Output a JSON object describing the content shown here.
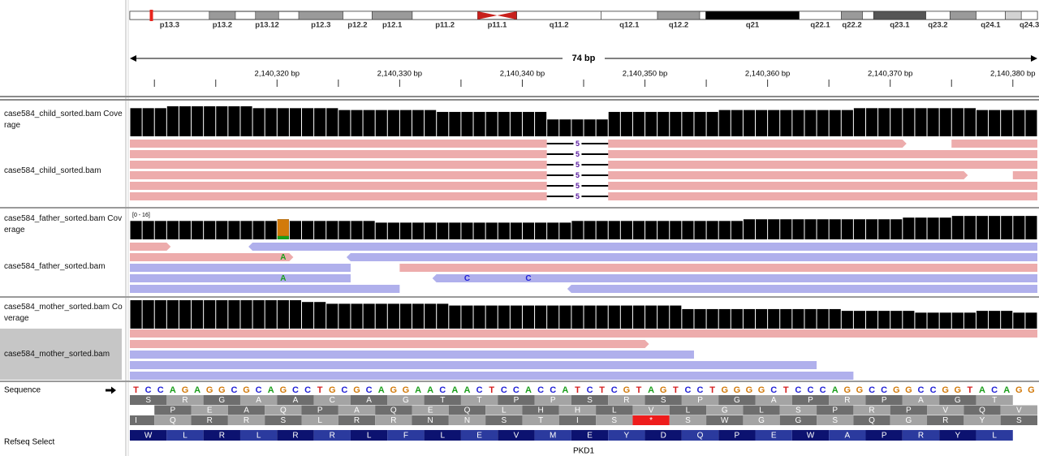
{
  "ideogram": {
    "length": 90.3,
    "marker": 2.14,
    "marker_color": "#e8261e",
    "stain_colors": {
      "gneg": "#ffffff",
      "gpos25": "#d2d2d2",
      "gpos50": "#9a9a9a",
      "gpos75": "#555555",
      "gpos100": "#000000",
      "acen": "#c8201c"
    },
    "bands": [
      {
        "label": "p13.3",
        "start": 0,
        "end": 7.9,
        "stain": "gneg"
      },
      {
        "label": "p13.2",
        "start": 7.9,
        "end": 10.5,
        "stain": "gpos50"
      },
      {
        "label": "p13.12",
        "start": 12.5,
        "end": 14.8,
        "stain": "gpos50"
      },
      {
        "label": "p12.3",
        "start": 16.8,
        "end": 21.2,
        "stain": "gpos50"
      },
      {
        "label": "p12.2",
        "start": 21.2,
        "end": 24.1,
        "stain": "gneg"
      },
      {
        "label": "p12.1",
        "start": 24.1,
        "end": 28.1,
        "stain": "gpos50"
      },
      {
        "label": "p11.2",
        "start": 28.1,
        "end": 34.6,
        "stain": "gneg"
      },
      {
        "label": "p11.1",
        "start": 34.6,
        "end": 38.5,
        "stain": "acen"
      },
      {
        "label": "q11.2",
        "start": 38.5,
        "end": 46.9,
        "stain": "gneg"
      },
      {
        "label": "q12.1",
        "start": 46.9,
        "end": 52.5,
        "stain": "gneg"
      },
      {
        "label": "q12.2",
        "start": 52.5,
        "end": 56.7,
        "stain": "gpos50"
      },
      {
        "label": "q21",
        "start": 57.3,
        "end": 66.6,
        "stain": "gpos100"
      },
      {
        "label": "q22.1",
        "start": 66.6,
        "end": 70.8,
        "stain": "gneg"
      },
      {
        "label": "q22.2",
        "start": 70.8,
        "end": 72.9,
        "stain": "gpos50"
      },
      {
        "label": "q23.1",
        "start": 74.0,
        "end": 79.2,
        "stain": "gpos75"
      },
      {
        "label": "q23.2",
        "start": 79.2,
        "end": 81.6,
        "stain": "gneg"
      },
      {
        "label": "q24.1",
        "start": 84.2,
        "end": 87.1,
        "stain": "gneg"
      },
      {
        "label": "q24.3",
        "start": 88.7,
        "end": 90.3,
        "stain": "gneg"
      }
    ],
    "unlabeled_bands": [
      {
        "start": 81.6,
        "end": 84.2,
        "stain": "gpos50"
      },
      {
        "start": 87.1,
        "end": 88.7,
        "stain": "gpos25"
      }
    ]
  },
  "ruler": {
    "span_label": "74 bp",
    "xlim": [
      2140308,
      2140382
    ],
    "ticks": [
      2140310,
      2140315,
      {
        "value": 2140320,
        "label": "2,140,320 bp"
      },
      2140325,
      {
        "value": 2140330,
        "label": "2,140,330 bp"
      },
      2140335,
      {
        "value": 2140340,
        "label": "2,140,340 bp"
      },
      2140345,
      {
        "value": 2140350,
        "label": "2,140,350 bp"
      },
      2140355,
      {
        "value": 2140360,
        "label": "2,140,360 bp"
      },
      2140365,
      {
        "value": 2140370,
        "label": "2,140,370 bp"
      },
      2140375,
      {
        "value": 2140380,
        "label": "2,140,380 bp"
      }
    ]
  },
  "base_colors": {
    "A": "#1a9e1a",
    "C": "#1f1fd6",
    "G": "#d27a0a",
    "T": "#d41c1c"
  },
  "read_colors": {
    "+": "#edacac",
    "-": "#b0b0ec"
  },
  "tracks": [
    {
      "name": "case584_child_sorted.bam Coverage",
      "kind": "coverage",
      "ylim": [
        0,
        16
      ],
      "values": [
        15,
        15,
        15,
        16,
        16,
        16,
        16,
        16,
        16,
        16,
        15,
        15,
        15,
        15,
        15,
        15,
        15,
        14,
        14,
        14,
        14,
        14,
        14,
        14,
        14,
        13,
        13,
        13,
        13,
        13,
        13,
        13,
        13,
        13,
        9,
        9,
        9,
        9,
        9,
        13,
        13,
        13,
        13,
        13,
        13,
        13,
        13,
        13,
        14,
        14,
        14,
        14,
        14,
        14,
        14,
        14,
        14,
        14,
        14,
        15,
        15,
        15,
        15,
        15,
        15,
        15,
        15,
        15,
        15,
        14,
        14,
        14,
        14,
        14
      ]
    },
    {
      "name": "case584_child_sorted.bam",
      "kind": "alignment",
      "reads": [
        {
          "row": 0,
          "start": 2140290,
          "end": 2140371,
          "strand": "+"
        },
        {
          "row": 0,
          "start": 2140375,
          "end": 2140400,
          "strand": "+"
        },
        {
          "row": 1,
          "start": 2140290,
          "end": 2140400,
          "strand": "+"
        },
        {
          "row": 2,
          "start": 2140290,
          "end": 2140400,
          "strand": "+"
        },
        {
          "row": 3,
          "start": 2140290,
          "end": 2140376,
          "strand": "+"
        },
        {
          "row": 3,
          "start": 2140380,
          "end": 2140400,
          "strand": "+"
        },
        {
          "row": 4,
          "start": 2140290,
          "end": 2140400,
          "strand": "+"
        },
        {
          "row": 5,
          "start": 2140290,
          "end": 2140400,
          "strand": "+"
        }
      ],
      "deletions": [
        {
          "row": 0,
          "start": 2140342,
          "end": 2140347,
          "label": "5"
        },
        {
          "row": 1,
          "start": 2140342,
          "end": 2140347,
          "label": "5"
        },
        {
          "row": 2,
          "start": 2140342,
          "end": 2140347,
          "label": "5"
        },
        {
          "row": 3,
          "start": 2140342,
          "end": 2140347,
          "label": "5"
        },
        {
          "row": 4,
          "start": 2140342,
          "end": 2140347,
          "label": "5"
        },
        {
          "row": 5,
          "start": 2140342,
          "end": 2140347,
          "label": "5"
        }
      ]
    },
    {
      "name": "case584_father_sorted.bam Coverage",
      "kind": "coverage",
      "range_label": "[0 - 16]",
      "ylim": [
        0,
        16
      ],
      "values": [
        11,
        11,
        11,
        11,
        11,
        11,
        11,
        11,
        11,
        11,
        11,
        11,
        12,
        11,
        11,
        11,
        11,
        11,
        11,
        11,
        10,
        10,
        10,
        10,
        10,
        10,
        10,
        10,
        10,
        10,
        10,
        10,
        10,
        10,
        10,
        10,
        11,
        11,
        11,
        11,
        11,
        11,
        11,
        11,
        11,
        11,
        11,
        11,
        11,
        11,
        12,
        12,
        12,
        12,
        12,
        12,
        12,
        12,
        12,
        12,
        12,
        12,
        12,
        13,
        13,
        13,
        13,
        14,
        14,
        14,
        14,
        14,
        14,
        14
      ],
      "allele_split": {
        "position": 2140320,
        "counts": {
          "A": 2,
          "G": 10
        }
      }
    },
    {
      "name": "case584_father_sorted.bam",
      "kind": "alignment",
      "reads": [
        {
          "row": 0,
          "start": 2140290,
          "end": 2140311,
          "strand": "+"
        },
        {
          "row": 0,
          "start": 2140318,
          "end": 2140400,
          "strand": "-"
        },
        {
          "row": 1,
          "start": 2140290,
          "end": 2140321,
          "strand": "+"
        },
        {
          "row": 1,
          "start": 2140326,
          "end": 2140400,
          "strand": "-"
        },
        {
          "row": 2,
          "start": 2140290,
          "end": 2140326,
          "strand": "-"
        },
        {
          "row": 2,
          "start": 2140330,
          "end": 2140400,
          "strand": "+"
        },
        {
          "row": 3,
          "start": 2140290,
          "end": 2140326,
          "strand": "-"
        },
        {
          "row": 3,
          "start": 2140333,
          "end": 2140400,
          "strand": "-"
        },
        {
          "row": 4,
          "start": 2140290,
          "end": 2140330,
          "strand": "-"
        },
        {
          "row": 4,
          "start": 2140344,
          "end": 2140400,
          "strand": "-"
        }
      ],
      "mismatches": [
        {
          "row": 1,
          "position": 2140320,
          "base": "A"
        },
        {
          "row": 3,
          "position": 2140320,
          "base": "A"
        },
        {
          "row": 3,
          "position": 2140335,
          "base": "C"
        },
        {
          "row": 3,
          "position": 2140340,
          "base": "C"
        }
      ]
    },
    {
      "name": "case584_mother_sorted.bam Coverage",
      "kind": "coverage",
      "ylim": [
        0,
        16
      ],
      "values": [
        16,
        16,
        16,
        16,
        16,
        16,
        16,
        16,
        16,
        16,
        16,
        16,
        16,
        16,
        15,
        15,
        14,
        14,
        14,
        14,
        14,
        14,
        14,
        14,
        14,
        14,
        13,
        13,
        13,
        13,
        13,
        13,
        13,
        13,
        13,
        13,
        13,
        13,
        13,
        13,
        13,
        13,
        13,
        13,
        13,
        11,
        11,
        11,
        11,
        11,
        11,
        11,
        11,
        11,
        11,
        11,
        11,
        11,
        10,
        10,
        10,
        10,
        10,
        10,
        9,
        9,
        9,
        9,
        9,
        10,
        10,
        10,
        9,
        9
      ]
    },
    {
      "name": "case584_mother_sorted.bam",
      "kind": "alignment",
      "selected": true,
      "reads": [
        {
          "row": 0,
          "start": 2140290,
          "end": 2140400,
          "strand": "+"
        },
        {
          "row": 1,
          "start": 2140290,
          "end": 2140350,
          "strand": "+"
        },
        {
          "row": 2,
          "start": 2140290,
          "end": 2140354,
          "strand": "-"
        },
        {
          "row": 3,
          "start": 2140290,
          "end": 2140364,
          "strand": "-"
        },
        {
          "row": 4,
          "start": 2140290,
          "end": 2140367,
          "strand": "-"
        }
      ]
    }
  ],
  "sequence": {
    "label": "Sequence",
    "bases": [
      "T",
      "C",
      "C",
      "A",
      "G",
      "A",
      "G",
      "G",
      "C",
      "G",
      "C",
      "A",
      "G",
      "C",
      "C",
      "T",
      "G",
      "C",
      "G",
      "C",
      "A",
      "G",
      "G",
      "A",
      "A",
      "C",
      "A",
      "A",
      "C",
      "T",
      "C",
      "C",
      "A",
      "C",
      "C",
      "A",
      "T",
      "C",
      "T",
      "C",
      "G",
      "T",
      "A",
      "G",
      "T",
      "C",
      "C",
      "T",
      "G",
      "G",
      "G",
      "G",
      "C",
      "T",
      "C",
      "C",
      "C",
      "A",
      "G",
      "G",
      "C",
      "C",
      "G",
      "G",
      "C",
      "C",
      "G",
      "G",
      "T",
      "A",
      "C",
      "A",
      "G",
      "G"
    ],
    "frame_colors": [
      "#6e6e6e",
      "#a4a4a4"
    ],
    "frames": [
      {
        "offset": 0,
        "residues": [
          "S",
          "R",
          "G",
          "A",
          "A",
          "C",
          "A",
          "G",
          "T",
          "T",
          "P",
          "P",
          "S",
          "R",
          "S",
          "P",
          "G",
          "A",
          "P",
          "R",
          "P",
          "A",
          "G",
          "T"
        ]
      },
      {
        "offset": 2,
        "residues": [
          "P",
          "E",
          "A",
          "Q",
          "P",
          "A",
          "Q",
          "E",
          "Q",
          "L",
          "H",
          "H",
          "L",
          "V",
          "L",
          "G",
          "L",
          "S",
          "P",
          "R",
          "P",
          "V",
          "Q",
          "V"
        ]
      },
      {
        "offset": -1,
        "residues": [
          "I",
          "Q",
          "R",
          "R",
          "S",
          "L",
          "R",
          "R",
          "N",
          "N",
          "S",
          "T",
          "I",
          "S",
          "*",
          "S",
          "W",
          "G",
          "G",
          "S",
          "Q",
          "G",
          "R",
          "Y",
          "S"
        ]
      }
    ],
    "highlight": {
      "frame": 2,
      "index": 14,
      "color": "#ee1c1c"
    }
  },
  "gene_track": {
    "label": "Refseq Select",
    "gene": "PKD1",
    "offset": 0,
    "colors": [
      "#0c1270",
      "#2b3a9e"
    ],
    "residues": [
      "W",
      "L",
      "R",
      "L",
      "R",
      "R",
      "L",
      "F",
      "L",
      "E",
      "V",
      "M",
      "E",
      "Y",
      "D",
      "Q",
      "P",
      "E",
      "W",
      "A",
      "P",
      "R",
      "Y",
      "L"
    ]
  }
}
